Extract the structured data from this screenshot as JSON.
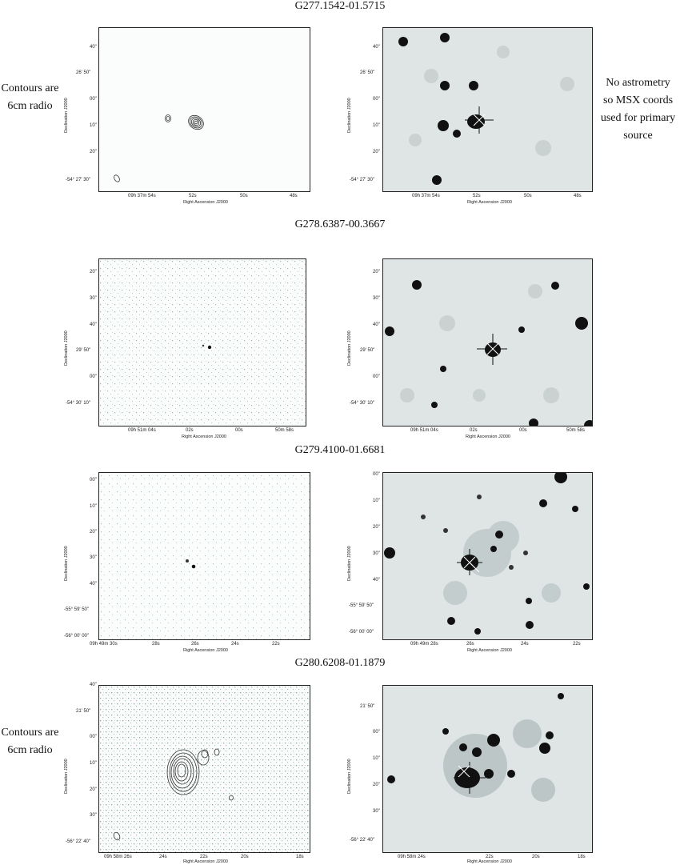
{
  "figure": {
    "common": {
      "ra_label": "Right Ascension J2000",
      "dec_label": "Declination J2000"
    },
    "rows": [
      {
        "title": "G277.1542-01.5715",
        "left_note": [
          "Contours are",
          "6cm radio"
        ],
        "right_note": [
          "No astrometry",
          "so MSX coords",
          "used for primary",
          "source"
        ],
        "radio_yticks": [
          "40\"",
          "26' 50\"",
          "00\"",
          "10\"",
          "20\"",
          "-54° 27' 30\""
        ],
        "radio_xticks": [
          "09h 37m 54s",
          "52s",
          "50s",
          "48s"
        ],
        "ir_yticks": [
          "40\"",
          "26' 50\"",
          "00\"",
          "10\"",
          "20\"",
          "-54° 27' 30\""
        ],
        "ir_xticks": [
          "09h 37m 54s",
          "52s",
          "50s",
          "48s"
        ]
      },
      {
        "title": "G278.6387-00.3667",
        "radio_yticks": [
          "20\"",
          "30\"",
          "40\"",
          "29' 50\"",
          "00\"",
          "-54° 30' 10\""
        ],
        "radio_xticks": [
          "09h 51m 04s",
          "02s",
          "00s",
          "50m 58s"
        ],
        "ir_yticks": [
          "20\"",
          "30\"",
          "40\"",
          "29' 50\"",
          "00\"",
          "-54° 30' 10\""
        ],
        "ir_xticks": [
          "09h 51m 04s",
          "02s",
          "00s",
          "50m 58s"
        ]
      },
      {
        "title": "G279.4100-01.6681",
        "radio_yticks": [
          "00\"",
          "10\"",
          "20\"",
          "30\"",
          "40\"",
          "-55° 59' 50\"",
          "-56° 00' 00\""
        ],
        "radio_xticks": [
          "09h 49m 30s",
          "28s",
          "26s",
          "24s",
          "22s"
        ],
        "ir_yticks": [
          "00\"",
          "10\"",
          "20\"",
          "30\"",
          "40\"",
          "-55° 59' 50\"",
          "-56° 00' 00\""
        ],
        "ir_xticks": [
          "09h 49m 28s",
          "26s",
          "24s",
          "22s"
        ]
      },
      {
        "title": "G280.6208-01.1879",
        "left_note": [
          "Contours are",
          "6cm radio"
        ],
        "radio_yticks": [
          "40\"",
          "21' 50\"",
          "00\"",
          "10\"",
          "20\"",
          "30\"",
          "-56° 22' 40\""
        ],
        "radio_xticks": [
          "09h 58m 26s",
          "24s",
          "22s",
          "20s",
          "18s"
        ],
        "ir_yticks": [
          "21' 50\"",
          "00\"",
          "10\"",
          "20\"",
          "30\"",
          "-56° 22' 40\""
        ],
        "ir_xticks": [
          "09h 58m 24s",
          "22s",
          "20s",
          "18s"
        ]
      }
    ]
  }
}
